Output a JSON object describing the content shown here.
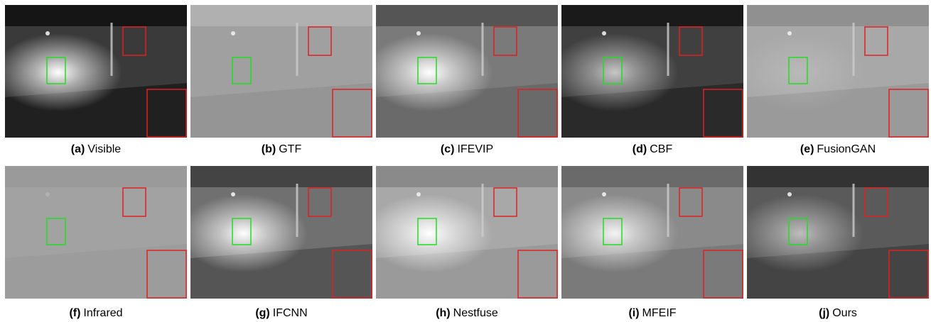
{
  "panels": [
    {
      "tag": "(a)",
      "name": "Visible"
    },
    {
      "tag": "(b)",
      "name": "GTF"
    },
    {
      "tag": "(c)",
      "name": "IFEVIP"
    },
    {
      "tag": "(d)",
      "name": "CBF"
    },
    {
      "tag": "(e)",
      "name": "FusionGAN"
    },
    {
      "tag": "(f)",
      "name": "Infrared"
    },
    {
      "tag": "(g)",
      "name": "IFCNN"
    },
    {
      "tag": "(h)",
      "name": "Nestfuse"
    },
    {
      "tag": "(i)",
      "name": "MFEIF"
    },
    {
      "tag": "(j)",
      "name": "Ours"
    }
  ]
}
